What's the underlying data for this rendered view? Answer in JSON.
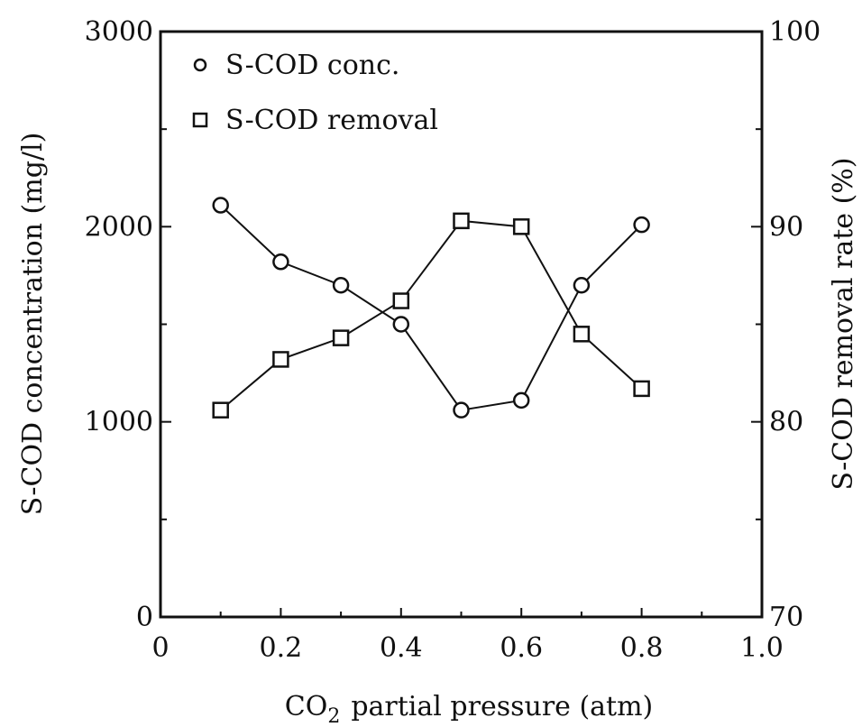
{
  "chart_data": {
    "type": "line",
    "title": "",
    "xlabel": "CO2 partial pressure (atm)",
    "xlabel_main": "CO",
    "xlabel_sub": "2",
    "xlabel_rest": "partial pressure (atm)",
    "ylabel": "S-COD concentration (mg/l)",
    "y2label": "S-COD removal rate (%)",
    "xlim": [
      0,
      1.0
    ],
    "ylim": [
      0,
      3000
    ],
    "y2lim": [
      70,
      100
    ],
    "xticks": [
      "0",
      "0.2",
      "0.4",
      "0.6",
      "0.8",
      "1.0"
    ],
    "xtick_values": [
      0,
      0.2,
      0.4,
      0.6,
      0.8,
      1.0
    ],
    "yticks": [
      "0",
      "1000",
      "2000",
      "3000"
    ],
    "ytick_values": [
      0,
      1000,
      2000,
      3000
    ],
    "y2ticks": [
      "70",
      "80",
      "90",
      "100"
    ],
    "y2tick_values": [
      70,
      80,
      90,
      100
    ],
    "grid": false,
    "legend_position": "top-left",
    "series": [
      {
        "name": "S-COD conc.",
        "marker": "circle",
        "axis": "left",
        "x": [
          0.1,
          0.2,
          0.3,
          0.4,
          0.5,
          0.6,
          0.7,
          0.8
        ],
        "values": [
          2110,
          1820,
          1700,
          1500,
          1060,
          1110,
          1700,
          2010
        ]
      },
      {
        "name": "S-COD removal",
        "marker": "square",
        "axis": "right",
        "x": [
          0.1,
          0.2,
          0.3,
          0.4,
          0.5,
          0.6,
          0.7,
          0.8
        ],
        "values": [
          80.6,
          83.2,
          84.3,
          86.2,
          90.3,
          90.0,
          84.5,
          81.7
        ]
      }
    ]
  }
}
